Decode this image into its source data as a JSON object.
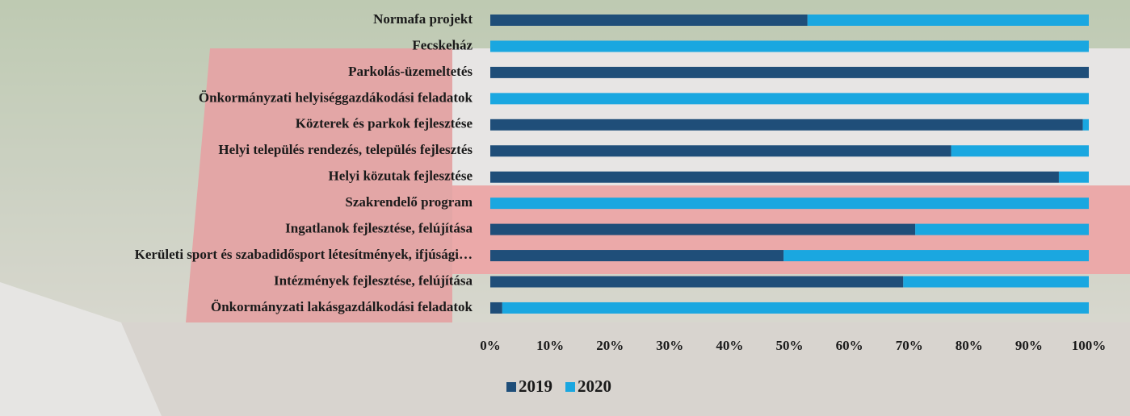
{
  "chart_data": {
    "type": "stacked_bar_horizontal",
    "categories": [
      "Normafa projekt",
      "Fecskeház",
      "Parkolás-üzemeltetés",
      "Önkormányzati helyiséggazdákodási feladatok",
      "Közterek és parkok fejlesztése",
      "Helyi település rendezés, település fejlesztés",
      "Helyi közutak fejlesztése",
      "Szakrendelő program",
      "Ingatlanok fejlesztése, felújítása",
      "Kerületi sport és szabadidősport létesítmények, ifjúsági…",
      "Intézmények fejlesztése, felújítása",
      "Önkormányzati lakásgazdálkodási feladatok"
    ],
    "series": [
      {
        "name": "2019",
        "color": "#1f4e79",
        "values": [
          53,
          0,
          100,
          0,
          99,
          77,
          95,
          0,
          71,
          49,
          69,
          2
        ]
      },
      {
        "name": "2020",
        "color": "#1aa7e0",
        "values": [
          47,
          100,
          0,
          100,
          1,
          23,
          5,
          100,
          29,
          51,
          31,
          98
        ]
      }
    ],
    "xlim": [
      0,
      100
    ],
    "xticks": [
      {
        "value": 0,
        "label": "0%"
      },
      {
        "value": 10,
        "label": "10%"
      },
      {
        "value": 20,
        "label": "20%"
      },
      {
        "value": 30,
        "label": "30%"
      },
      {
        "value": 40,
        "label": "40%"
      },
      {
        "value": 50,
        "label": "50%"
      },
      {
        "value": 60,
        "label": "60%"
      },
      {
        "value": 70,
        "label": "70%"
      },
      {
        "value": 80,
        "label": "80%"
      },
      {
        "value": 90,
        "label": "90%"
      },
      {
        "value": 100,
        "label": "100%"
      }
    ],
    "grid": false,
    "legend": "bottom"
  }
}
